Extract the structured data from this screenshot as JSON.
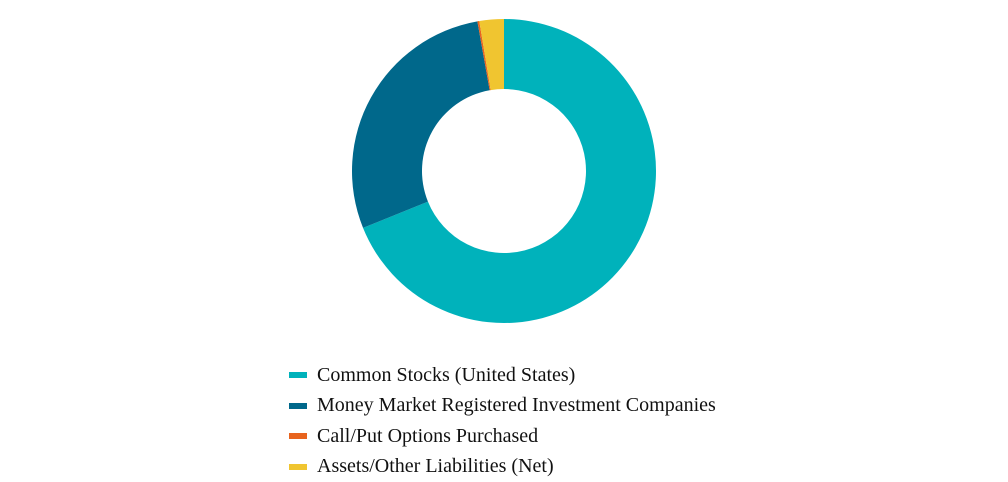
{
  "chart_data": {
    "type": "pie",
    "variant": "donut",
    "title": "",
    "series": [
      {
        "name": "Common Stocks (United States)",
        "value": 68.9,
        "color": "#00B2BB"
      },
      {
        "name": "Money Market Registered Investment Companies",
        "value": 28.3,
        "color": "#00688B"
      },
      {
        "name": "Call/Put Options Purchased",
        "value": 0.2,
        "color": "#E8641E"
      },
      {
        "name": "Assets/Other Liabilities (Net)",
        "value": 2.6,
        "color": "#F0C530"
      }
    ],
    "legend_position": "bottom"
  }
}
